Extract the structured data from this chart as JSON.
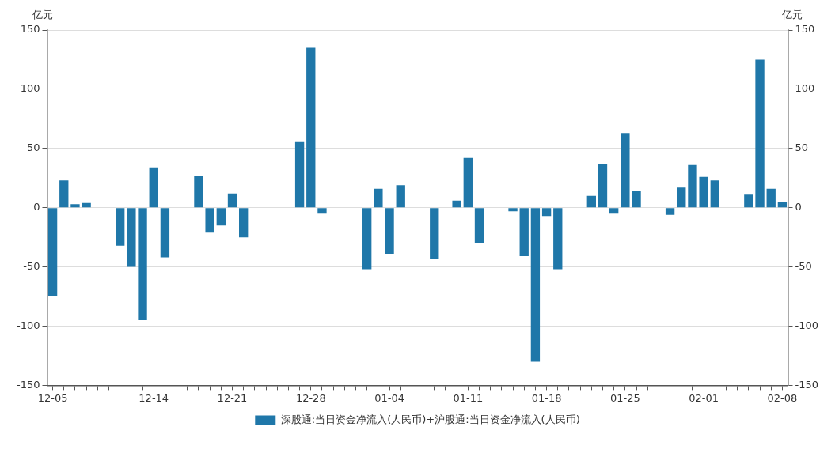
{
  "chart_data": {
    "type": "bar",
    "categories": [
      "12-05",
      null,
      null,
      null,
      null,
      null,
      null,
      null,
      null,
      "12-14",
      null,
      null,
      null,
      null,
      null,
      null,
      "12-21",
      null,
      null,
      null,
      null,
      null,
      null,
      "12-28",
      null,
      null,
      null,
      null,
      null,
      null,
      "01-04",
      null,
      null,
      null,
      null,
      null,
      null,
      "01-11",
      null,
      null,
      null,
      null,
      null,
      null,
      "01-18",
      null,
      null,
      null,
      null,
      null,
      null,
      "01-25",
      null,
      null,
      null,
      null,
      null,
      null,
      "02-01",
      null,
      null,
      null,
      null,
      null,
      null,
      "02-08"
    ],
    "series": [
      {
        "name": "深股通:当日资金净流入(人民币)+沪股通:当日资金净流入(人民币)",
        "color": "#1f77a9",
        "values": [
          -75,
          23,
          3,
          4,
          null,
          null,
          -32,
          -50,
          -95,
          34,
          -42,
          null,
          null,
          27,
          -21,
          -15,
          12,
          -25,
          null,
          null,
          null,
          null,
          56,
          135,
          -5,
          null,
          null,
          null,
          -52,
          16,
          -39,
          19,
          null,
          null,
          -43,
          null,
          6,
          42,
          -30,
          null,
          null,
          -3,
          -41,
          -130,
          -7,
          -52,
          null,
          null,
          10,
          37,
          -5,
          63,
          14,
          null,
          null,
          -6,
          17,
          36,
          26,
          23,
          null,
          null,
          11,
          125,
          16,
          5
        ]
      }
    ],
    "ylabel": "亿元",
    "y2label": "亿元",
    "ylim": [
      -150,
      150
    ],
    "yticks": [
      -150,
      -100,
      -50,
      0,
      50,
      100,
      150
    ],
    "y2lim": [
      -150,
      150
    ],
    "y2ticks": [
      -150,
      -100,
      -50,
      0,
      50,
      100,
      150
    ],
    "grid": "y",
    "legend": "bottom"
  }
}
